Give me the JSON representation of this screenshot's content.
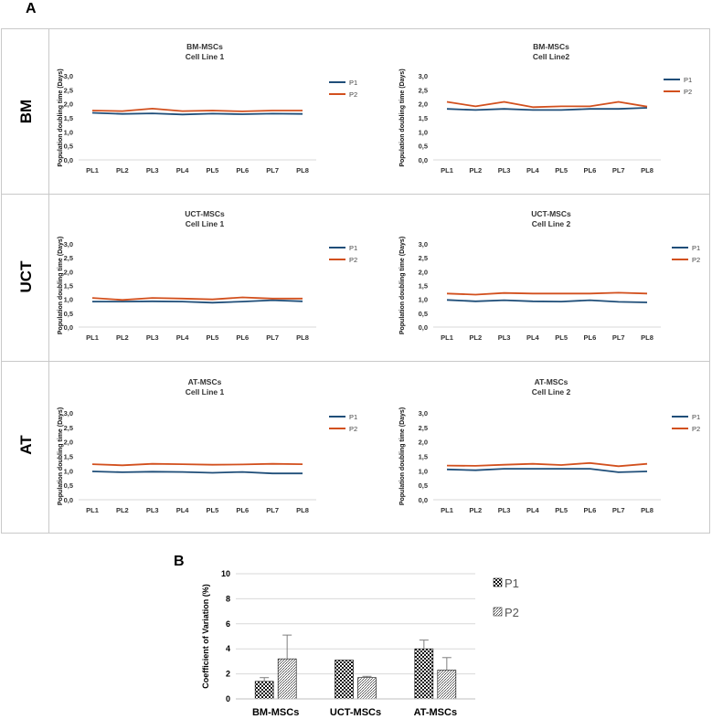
{
  "panel_a_label": "A",
  "panel_b_label": "B",
  "rows": [
    "BM",
    "UCT",
    "AT"
  ],
  "colors": {
    "P1": "#1f4e79",
    "P2": "#d2501e",
    "frame": "#c9c9c9",
    "bar_fill": "#ffffff",
    "bar_edge": "#000000",
    "error": "#7f7f7f"
  },
  "chart_data": [
    {
      "type": "line",
      "panel": "A",
      "row": "BM",
      "title": "BM-MSCs",
      "subtitle": "Cell Line 1",
      "ylabel": "Population doubling time (Days)",
      "ylim": [
        0,
        3
      ],
      "yticks": [
        "0,0",
        "0,5",
        "1,0",
        "1,5",
        "2,0",
        "2,5",
        "3,0"
      ],
      "categories": [
        "PL1",
        "PL2",
        "PL3",
        "PL4",
        "PL5",
        "PL6",
        "PL7",
        "PL8"
      ],
      "series": [
        {
          "name": "P1",
          "values": [
            1.68,
            1.64,
            1.66,
            1.62,
            1.65,
            1.63,
            1.65,
            1.64
          ]
        },
        {
          "name": "P2",
          "values": [
            1.76,
            1.74,
            1.83,
            1.74,
            1.76,
            1.73,
            1.76,
            1.76
          ]
        }
      ]
    },
    {
      "type": "line",
      "panel": "A",
      "row": "BM",
      "title": "BM-MSCs",
      "subtitle": "Cell Line2",
      "ylabel": "Population doubling time (Days)",
      "ylim": [
        0,
        3
      ],
      "yticks": [
        "0,0",
        "0,5",
        "1,0",
        "1,5",
        "2,0",
        "2,5",
        "3,0"
      ],
      "categories": [
        "PL1",
        "PL2",
        "PL3",
        "PL4",
        "PL5",
        "PL6",
        "PL7",
        "PL8"
      ],
      "series": [
        {
          "name": "P1",
          "values": [
            1.82,
            1.78,
            1.82,
            1.78,
            1.78,
            1.82,
            1.82,
            1.86
          ]
        },
        {
          "name": "P2",
          "values": [
            2.07,
            1.91,
            2.07,
            1.88,
            1.91,
            1.91,
            2.07,
            1.9
          ]
        }
      ]
    },
    {
      "type": "line",
      "panel": "A",
      "row": "UCT",
      "title": "UCT-MSCs",
      "subtitle": "Cell Line 1",
      "ylabel": "Population doubling time (Days)",
      "ylim": [
        0,
        3
      ],
      "yticks": [
        "0,0",
        "0,5",
        "1,0",
        "1,5",
        "2,0",
        "2,5",
        "3,0"
      ],
      "categories": [
        "PL1",
        "PL2",
        "PL3",
        "PL4",
        "PL5",
        "PL6",
        "PL7",
        "PL8"
      ],
      "series": [
        {
          "name": "P1",
          "values": [
            0.92,
            0.92,
            0.93,
            0.92,
            0.88,
            0.92,
            0.97,
            0.93
          ]
        },
        {
          "name": "P2",
          "values": [
            1.05,
            0.98,
            1.05,
            1.03,
            1.0,
            1.07,
            1.03,
            1.03
          ]
        }
      ]
    },
    {
      "type": "line",
      "panel": "A",
      "row": "UCT",
      "title": "UCT-MSCs",
      "subtitle": "Cell Line 2",
      "ylabel": "Population doubling time (Days)",
      "ylim": [
        0,
        3
      ],
      "yticks": [
        "0,0",
        "0,5",
        "1,0",
        "1,5",
        "2,0",
        "2,5",
        "3,0"
      ],
      "categories": [
        "PL1",
        "PL2",
        "PL3",
        "PL4",
        "PL5",
        "PL6",
        "PL7",
        "PL8"
      ],
      "series": [
        {
          "name": "P1",
          "values": [
            0.98,
            0.93,
            0.97,
            0.93,
            0.92,
            0.97,
            0.91,
            0.89
          ]
        },
        {
          "name": "P2",
          "values": [
            1.21,
            1.17,
            1.23,
            1.21,
            1.21,
            1.21,
            1.24,
            1.21
          ]
        }
      ]
    },
    {
      "type": "line",
      "panel": "A",
      "row": "AT",
      "title": "AT-MSCs",
      "subtitle": "Cell Line 1",
      "ylabel": "Population doubling time (Days)",
      "ylim": [
        0,
        3
      ],
      "yticks": [
        "0,0",
        "0,5",
        "1,0",
        "1,5",
        "2,0",
        "2,5",
        "3,0"
      ],
      "categories": [
        "PL1",
        "PL2",
        "PL3",
        "PL4",
        "PL5",
        "PL6",
        "PL7",
        "PL8"
      ],
      "series": [
        {
          "name": "P1",
          "values": [
            0.98,
            0.95,
            0.97,
            0.96,
            0.93,
            0.96,
            0.91,
            0.91
          ]
        },
        {
          "name": "P2",
          "values": [
            1.23,
            1.19,
            1.24,
            1.23,
            1.21,
            1.22,
            1.24,
            1.23
          ]
        }
      ]
    },
    {
      "type": "line",
      "panel": "A",
      "row": "AT",
      "title": "AT-MSCs",
      "subtitle": "Cell Line 2",
      "ylabel": "Population doubling time (Days)",
      "ylim": [
        0,
        3
      ],
      "yticks": [
        "0,0",
        "0,5",
        "1,0",
        "1,5",
        "2,0",
        "2,5",
        "3,0"
      ],
      "categories": [
        "PL1",
        "PL2",
        "PL3",
        "PL4",
        "PL5",
        "PL6",
        "PL7",
        "PL8"
      ],
      "series": [
        {
          "name": "P1",
          "values": [
            1.05,
            1.02,
            1.07,
            1.07,
            1.07,
            1.07,
            0.95,
            0.98
          ]
        },
        {
          "name": "P2",
          "values": [
            1.18,
            1.17,
            1.21,
            1.24,
            1.2,
            1.27,
            1.16,
            1.24
          ]
        }
      ]
    },
    {
      "type": "bar",
      "panel": "B",
      "ylabel": "Coefficient of Variation (%)",
      "ylim": [
        0,
        10
      ],
      "yticks": [
        "0",
        "2",
        "4",
        "6",
        "8",
        "10"
      ],
      "categories": [
        "BM-MSCs",
        "UCT-MSCs",
        "AT-MSCs"
      ],
      "series": [
        {
          "name": "P1",
          "values": [
            1.4,
            3.1,
            4.0
          ],
          "errors": [
            0.3,
            0,
            0.7
          ]
        },
        {
          "name": "P2",
          "values": [
            3.2,
            1.7,
            2.3
          ],
          "errors": [
            1.9,
            0.1,
            1.0
          ]
        }
      ]
    }
  ]
}
